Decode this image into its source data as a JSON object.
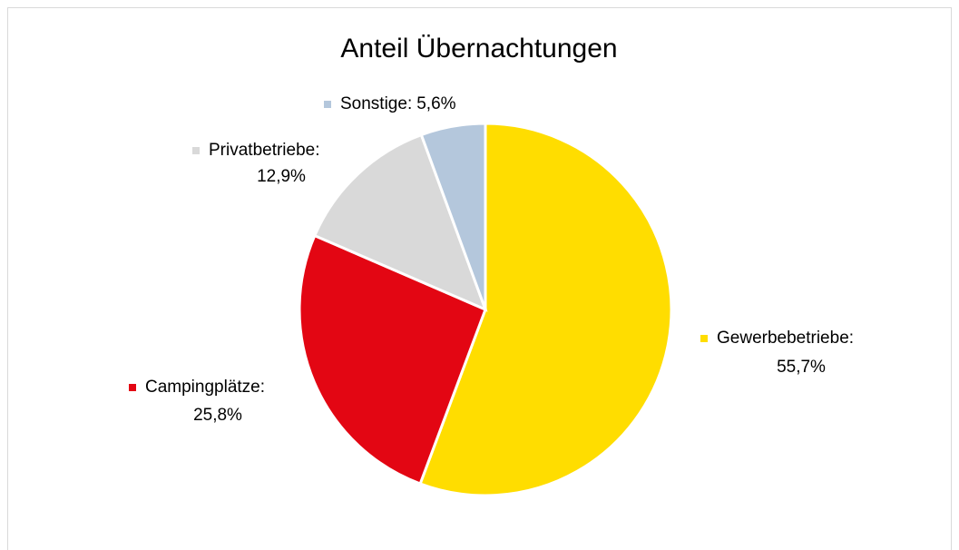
{
  "chart_data": {
    "type": "pie",
    "title": "Anteil Übernachtungen",
    "categories": [
      "Gewerbebetriebe:",
      "Campingplätze:",
      "Privatbetriebe:",
      "Sonstige:"
    ],
    "values": [
      55.7,
      25.8,
      12.9,
      5.6
    ],
    "value_labels": [
      "55,7%",
      "25,8%",
      "12,9%",
      "5,6%"
    ],
    "colors": [
      "#FFDD00",
      "#E30613",
      "#D9D9D9",
      "#B4C7DC"
    ]
  }
}
